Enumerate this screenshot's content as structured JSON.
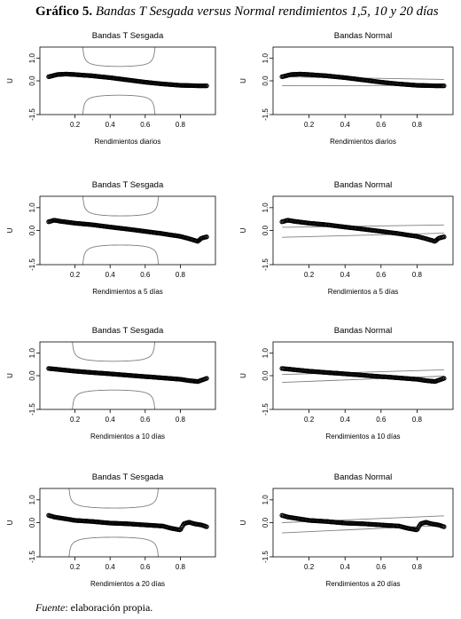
{
  "figure": {
    "title_bold": "Gráfico 5.",
    "title_italic": "Bandas T Sesgada versus Normal rendimientos 1,5, 10 y 20 días",
    "source_italic": "Fuente",
    "source_rest": ": elaboración propia."
  },
  "chart_data": [
    {
      "type": "line",
      "title": "Bandas T Sesgada",
      "xlabel": "Rendimientos diarios",
      "ylabel": "U",
      "xlim": [
        0.0,
        1.0
      ],
      "ylim": [
        -1.5,
        1.5
      ],
      "xticks": [
        "0.2",
        "0.4",
        "0.6",
        "0.8"
      ],
      "yticks": [
        "-1.5",
        "0.0",
        "1.0"
      ],
      "series": [
        {
          "style": "points",
          "x": [
            0.05,
            0.1,
            0.15,
            0.2,
            0.3,
            0.4,
            0.5,
            0.6,
            0.7,
            0.8,
            0.9,
            0.95
          ],
          "y": [
            0.18,
            0.28,
            0.3,
            0.28,
            0.22,
            0.14,
            0.04,
            -0.06,
            -0.14,
            -0.2,
            -0.22,
            -0.22
          ]
        }
      ],
      "bands": {
        "kind": "skewt",
        "center": 0.45,
        "width": 0.21,
        "cap": 1.5
      }
    },
    {
      "type": "line",
      "title": "Bandas Normal",
      "xlabel": "Rendimientos diarios",
      "ylabel": "U",
      "xlim": [
        0.0,
        1.0
      ],
      "ylim": [
        -1.5,
        1.5
      ],
      "xticks": [
        "0.2",
        "0.4",
        "0.6",
        "0.8"
      ],
      "yticks": [
        "-1.5",
        "0.0",
        "1.0"
      ],
      "series": [
        {
          "style": "points",
          "x": [
            0.05,
            0.1,
            0.15,
            0.2,
            0.3,
            0.4,
            0.5,
            0.6,
            0.7,
            0.8,
            0.9,
            0.95
          ],
          "y": [
            0.18,
            0.28,
            0.3,
            0.28,
            0.22,
            0.14,
            0.04,
            -0.06,
            -0.14,
            -0.2,
            -0.22,
            -0.22
          ]
        }
      ],
      "bands": {
        "kind": "normal",
        "upper": [
          0.18,
          0.06
        ],
        "lower": [
          -0.22,
          -0.2
        ]
      }
    },
    {
      "type": "line",
      "title": "Bandas T Sesgada",
      "xlabel": "Rendimientos a 5 días",
      "ylabel": "U",
      "xlim": [
        0.0,
        1.0
      ],
      "ylim": [
        -1.5,
        1.5
      ],
      "xticks": [
        "0.2",
        "0.4",
        "0.6",
        "0.8"
      ],
      "yticks": [
        "-1.5",
        "0.0",
        "1.0"
      ],
      "series": [
        {
          "style": "points",
          "x": [
            0.05,
            0.08,
            0.12,
            0.2,
            0.3,
            0.4,
            0.5,
            0.6,
            0.7,
            0.8,
            0.85,
            0.9,
            0.92,
            0.95
          ],
          "y": [
            0.38,
            0.45,
            0.4,
            0.32,
            0.25,
            0.15,
            0.06,
            -0.04,
            -0.14,
            -0.26,
            -0.36,
            -0.48,
            -0.34,
            -0.28
          ]
        }
      ],
      "bands": {
        "kind": "skewt",
        "center": 0.46,
        "width": 0.22,
        "cap": 1.5
      }
    },
    {
      "type": "line",
      "title": "Bandas Normal",
      "xlabel": "Rendimientos a 5 días",
      "ylabel": "U",
      "xlim": [
        0.0,
        1.0
      ],
      "ylim": [
        -1.5,
        1.5
      ],
      "xticks": [
        "0.2",
        "0.4",
        "0.6",
        "0.8"
      ],
      "yticks": [
        "-1.5",
        "0.0",
        "1.0"
      ],
      "series": [
        {
          "style": "points",
          "x": [
            0.05,
            0.08,
            0.12,
            0.2,
            0.3,
            0.4,
            0.5,
            0.6,
            0.7,
            0.8,
            0.85,
            0.9,
            0.92,
            0.95
          ],
          "y": [
            0.38,
            0.45,
            0.4,
            0.32,
            0.25,
            0.15,
            0.06,
            -0.04,
            -0.14,
            -0.26,
            -0.36,
            -0.48,
            -0.34,
            -0.28
          ]
        }
      ],
      "bands": {
        "kind": "normal",
        "upper": [
          0.14,
          0.24
        ],
        "lower": [
          -0.3,
          -0.12
        ]
      }
    },
    {
      "type": "line",
      "title": "Bandas T Sesgada",
      "xlabel": "Rendimientos a 10 días",
      "ylabel": "U",
      "xlim": [
        0.0,
        1.0
      ],
      "ylim": [
        -1.5,
        1.5
      ],
      "xticks": [
        "0.2",
        "0.4",
        "0.6",
        "0.8"
      ],
      "yticks": [
        "-1.5",
        "0.0",
        "1.0"
      ],
      "series": [
        {
          "style": "points",
          "x": [
            0.05,
            0.1,
            0.15,
            0.2,
            0.3,
            0.4,
            0.5,
            0.6,
            0.7,
            0.8,
            0.85,
            0.9,
            0.95
          ],
          "y": [
            0.32,
            0.28,
            0.24,
            0.2,
            0.14,
            0.08,
            0.02,
            -0.04,
            -0.1,
            -0.16,
            -0.22,
            -0.26,
            -0.12
          ]
        }
      ],
      "bands": {
        "kind": "skewt",
        "center": 0.42,
        "width": 0.24,
        "cap": 1.5
      }
    },
    {
      "type": "line",
      "title": "Bandas Normal",
      "xlabel": "Rendimientos a 10 días",
      "ylabel": "U",
      "xlim": [
        0.0,
        1.0
      ],
      "ylim": [
        -1.5,
        1.5
      ],
      "xticks": [
        "0.2",
        "0.4",
        "0.6",
        "0.8"
      ],
      "yticks": [
        "-1.5",
        "0.0",
        "1.0"
      ],
      "series": [
        {
          "style": "points",
          "x": [
            0.05,
            0.1,
            0.15,
            0.2,
            0.3,
            0.4,
            0.5,
            0.6,
            0.7,
            0.8,
            0.85,
            0.9,
            0.95
          ],
          "y": [
            0.32,
            0.28,
            0.24,
            0.2,
            0.14,
            0.08,
            0.02,
            -0.04,
            -0.1,
            -0.16,
            -0.22,
            -0.26,
            -0.12
          ]
        }
      ],
      "bands": {
        "kind": "normal",
        "upper": [
          0.05,
          0.26
        ],
        "lower": [
          -0.3,
          -0.02
        ]
      }
    },
    {
      "type": "line",
      "title": "Bandas T Sesgada",
      "xlabel": "Rendimientos a 20 días",
      "ylabel": "U",
      "xlim": [
        0.0,
        1.0
      ],
      "ylim": [
        -1.5,
        1.5
      ],
      "xticks": [
        "0.2",
        "0.4",
        "0.6",
        "0.8"
      ],
      "yticks": [
        "-1.5",
        "0.0",
        "1.0"
      ],
      "series": [
        {
          "style": "points",
          "x": [
            0.05,
            0.08,
            0.12,
            0.2,
            0.3,
            0.4,
            0.5,
            0.6,
            0.7,
            0.75,
            0.8,
            0.82,
            0.85,
            0.88,
            0.92,
            0.95
          ],
          "y": [
            0.32,
            0.25,
            0.2,
            0.1,
            0.05,
            -0.02,
            -0.05,
            -0.1,
            -0.15,
            -0.25,
            -0.32,
            -0.05,
            0.02,
            -0.05,
            -0.1,
            -0.18
          ]
        }
      ],
      "bands": {
        "kind": "skewt",
        "center": 0.42,
        "width": 0.26,
        "cap": 1.5
      }
    },
    {
      "type": "line",
      "title": "Bandas Normal",
      "xlabel": "Rendimientos a 20 días",
      "ylabel": "U",
      "xlim": [
        0.0,
        1.0
      ],
      "ylim": [
        -1.5,
        1.5
      ],
      "xticks": [
        "0.2",
        "0.4",
        "0.6",
        "0.8"
      ],
      "yticks": [
        "-1.5",
        "0.0",
        "1.0"
      ],
      "series": [
        {
          "style": "points",
          "x": [
            0.05,
            0.08,
            0.12,
            0.2,
            0.3,
            0.4,
            0.5,
            0.6,
            0.7,
            0.75,
            0.8,
            0.82,
            0.85,
            0.88,
            0.92,
            0.95
          ],
          "y": [
            0.32,
            0.25,
            0.2,
            0.1,
            0.05,
            -0.02,
            -0.05,
            -0.1,
            -0.15,
            -0.25,
            -0.32,
            -0.05,
            0.02,
            -0.05,
            -0.1,
            -0.18
          ]
        }
      ],
      "bands": {
        "kind": "normal",
        "upper": [
          0.0,
          0.3
        ],
        "lower": [
          -0.45,
          -0.12
        ]
      }
    }
  ]
}
